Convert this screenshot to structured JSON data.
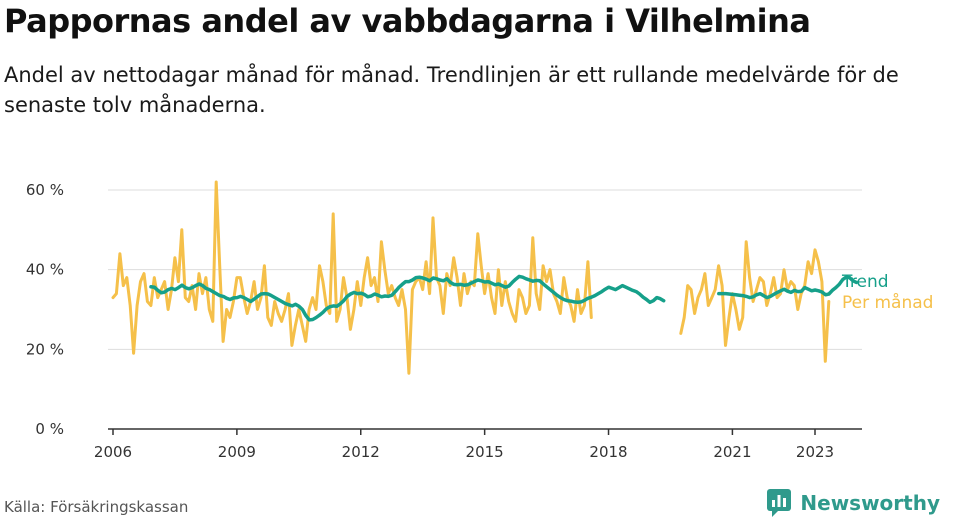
{
  "title": "Pappornas andel av vabbdagarna i Vilhelmina",
  "subtitle": "Andel av nettodagar månad för månad. Trendlinjen är ett rullande medelvärde för de senaste tolv månaderna.",
  "source": "Källa: Försäkringskassan",
  "brand": "Newsworthy",
  "colors": {
    "monthly": "#f5c04a",
    "trend": "#16a08a",
    "grid": "#dddddd",
    "axis": "#333333",
    "brand": "#2f9a8c"
  },
  "chart_data": {
    "type": "line",
    "x_unit": "year (decimal)",
    "y_unit": "percent",
    "ylim": [
      0,
      60
    ],
    "xlim": [
      2005.5,
      2023.9
    ],
    "yticks": [
      0,
      20,
      40,
      60
    ],
    "ytick_labels": [
      "0 %",
      "20 %",
      "40 %",
      "60 %"
    ],
    "xticks": [
      2006,
      2009,
      2012,
      2015,
      2018,
      2021,
      2023
    ],
    "xtick_labels": [
      "2006",
      "2009",
      "2012",
      "2015",
      "2018",
      "2021",
      "2023"
    ],
    "grid": true,
    "legend": "end-of-line labels (right)",
    "series": [
      {
        "name": "Per månad",
        "color": "#f5c04a",
        "segments": [
          {
            "start": 2006.0,
            "step": 0.08333,
            "values": [
              33,
              34,
              44,
              36,
              38,
              31,
              19,
              31,
              37,
              39,
              32,
              31,
              38,
              33,
              35,
              37,
              30,
              35,
              43,
              37,
              50,
              33,
              32,
              36,
              30,
              39,
              34,
              38,
              30,
              27,
              62,
              41,
              22,
              30,
              28,
              32,
              38,
              38,
              33,
              29,
              32,
              37,
              30,
              33,
              41,
              28,
              26,
              32,
              29,
              27,
              30,
              34,
              21,
              26,
              30,
              26,
              22,
              30,
              33,
              30,
              41,
              37,
              31,
              29,
              54,
              27,
              30,
              38,
              33,
              25,
              30,
              37,
              31,
              38,
              43,
              36,
              38,
              32,
              47,
              40,
              34,
              36,
              33,
              31,
              35,
              30,
              14,
              35,
              37,
              38,
              35,
              42,
              34,
              53,
              38,
              36,
              29,
              39,
              36,
              43,
              38,
              31,
              39,
              34,
              37,
              36,
              49,
              41,
              34,
              39,
              33,
              29,
              40,
              31,
              37,
              32,
              29,
              27,
              35,
              33,
              29,
              31,
              48,
              34,
              30,
              41,
              37,
              40,
              34,
              32,
              29,
              38,
              33,
              31,
              27,
              35,
              29,
              31,
              42,
              28
            ]
          },
          {
            "start": 2019.75,
            "step": 0.08333,
            "values": [
              24,
              28,
              36,
              35,
              29,
              33,
              35,
              39,
              31,
              33,
              35,
              41,
              36,
              21,
              28,
              34,
              30,
              25,
              28,
              47,
              38,
              32,
              35,
              38,
              37,
              31,
              34,
              38,
              33,
              34,
              40,
              35,
              37,
              36,
              30,
              34,
              36,
              42,
              39,
              45,
              42,
              37,
              17,
              32
            ]
          }
        ]
      },
      {
        "name": "Trend",
        "color": "#16a08a",
        "segments": [
          {
            "start": 2006.92,
            "step": 0.08333,
            "values": [
              35.7,
              35.6,
              34.8,
              34.2,
              34.4,
              35.0,
              35.3,
              35.0,
              35.5,
              36.1,
              35.5,
              35.2,
              35.5,
              36.0,
              36.4,
              36.0,
              35.3,
              35.0,
              34.5,
              34.0,
              33.5,
              33.3,
              32.8,
              32.5,
              32.9,
              33.0,
              33.3,
              33.0,
              32.5,
              32.0,
              32.6,
              33.3,
              33.9,
              34.0,
              33.9,
              33.5,
              33.0,
              32.5,
              32.0,
              31.5,
              31.2,
              30.9,
              31.3,
              30.8,
              30.0,
              28.5,
              27.4,
              27.5,
              28.0,
              28.6,
              29.3,
              30.2,
              30.7,
              30.9,
              30.8,
              31.4,
              32.2,
              33.3,
              33.9,
              34.3,
              34.0,
              34.1,
              33.8,
              33.2,
              33.4,
              33.9,
              33.6,
              33.2,
              33.4,
              33.3,
              33.6,
              34.5,
              35.5,
              36.3,
              37.0,
              37.0,
              37.4,
              38.0,
              38.1,
              37.9,
              37.6,
              37.2,
              37.9,
              37.7,
              37.4,
              37.2,
              37.7,
              36.8,
              36.3,
              36.2,
              36.3,
              36.1,
              36.2,
              36.6,
              37.0,
              37.4,
              37.2,
              36.9,
              37.0,
              36.6,
              36.2,
              36.4,
              36.0,
              35.6,
              35.9,
              36.8,
              37.6,
              38.3,
              38.1,
              37.7,
              37.4,
              37.1,
              37.3,
              37.2,
              36.4,
              35.7,
              35.0,
              34.3,
              33.6,
              33.0,
              32.5,
              32.2,
              32.1,
              31.9,
              31.8,
              31.9,
              32.3,
              32.8,
              33.1,
              33.5,
              34.0,
              34.5,
              35.1,
              35.6,
              35.3,
              35.0,
              35.5,
              36.0,
              35.6,
              35.2,
              34.8,
              34.5,
              33.9,
              33.1,
              32.5,
              31.8,
              32.2,
              33.0,
              32.7,
              32.2
            ]
          },
          {
            "start": 2020.67,
            "step": 0.08333,
            "values": [
              34.0,
              34.0,
              34.0,
              33.9,
              33.8,
              33.7,
              33.6,
              33.5,
              33.3,
              33.0,
              33.2,
              33.7,
              34.0,
              33.5,
              33.0,
              33.3,
              33.8,
              34.3,
              34.7,
              35.1,
              34.6,
              34.3,
              34.8,
              34.5,
              34.6,
              35.5,
              35.1,
              34.7,
              34.9,
              34.7,
              34.4,
              33.7,
              33.9,
              34.8,
              35.5,
              36.3,
              37.5,
              38.1,
              38.0,
              37.2,
              36.8
            ]
          }
        ]
      }
    ]
  }
}
